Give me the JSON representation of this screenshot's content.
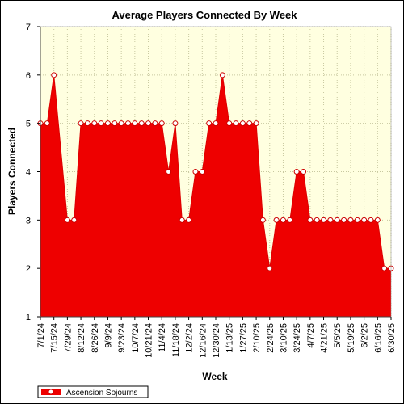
{
  "chart_data": {
    "type": "area",
    "title": "Average Players Connected By Week",
    "xlabel": "Week",
    "ylabel": "Players Connected",
    "ylim": [
      1,
      7
    ],
    "yticks": [
      1,
      2,
      3,
      4,
      5,
      6,
      7
    ],
    "grid": true,
    "legend_position": "bottom-left",
    "colors": {
      "series": "#ee0000",
      "plot_bg": "#ffffe0",
      "grid": "#c8c8a0",
      "marker_fill": "#ffffff"
    },
    "x_tick_labels": [
      "7/1/24",
      "7/15/24",
      "7/29/24",
      "8/12/24",
      "8/26/24",
      "9/9/24",
      "9/23/24",
      "10/7/24",
      "10/21/24",
      "11/4/24",
      "11/18/24",
      "12/2/24",
      "12/16/24",
      "12/30/24",
      "1/13/25",
      "1/27/25",
      "2/10/25",
      "2/24/25",
      "3/10/25",
      "3/24/25",
      "4/7/25",
      "4/21/25",
      "5/5/25",
      "5/19/25",
      "6/2/25",
      "6/16/25",
      "6/30/25"
    ],
    "series": [
      {
        "name": "Ascension Sojourns",
        "x": [
          "7/1/24",
          "7/8/24",
          "7/15/24",
          "7/22/24",
          "7/29/24",
          "8/5/24",
          "8/12/24",
          "8/19/24",
          "8/26/24",
          "9/2/24",
          "9/9/24",
          "9/16/24",
          "9/23/24",
          "9/30/24",
          "10/7/24",
          "10/14/24",
          "10/21/24",
          "10/28/24",
          "11/4/24",
          "11/11/24",
          "11/18/24",
          "11/25/24",
          "12/2/24",
          "12/9/24",
          "12/16/24",
          "12/23/24",
          "12/30/24",
          "1/6/25",
          "1/13/25",
          "1/20/25",
          "1/27/25",
          "2/3/25",
          "2/10/25",
          "2/17/25",
          "2/24/25",
          "3/3/25",
          "3/10/25",
          "3/17/25",
          "3/24/25",
          "3/31/25",
          "4/7/25",
          "4/14/25",
          "4/21/25",
          "4/28/25",
          "5/5/25",
          "5/12/25",
          "5/19/25",
          "5/26/25",
          "6/2/25",
          "6/9/25",
          "6/16/25",
          "6/23/25",
          "6/30/25"
        ],
        "values": [
          5,
          5,
          6,
          4.5,
          3,
          3,
          5,
          5,
          5,
          5,
          5,
          5,
          5,
          5,
          5,
          5,
          5,
          5,
          5,
          4,
          5,
          3,
          3,
          4,
          4,
          5,
          5,
          6,
          5,
          5,
          5,
          5,
          5,
          3,
          2,
          3,
          3,
          3,
          4,
          4,
          3,
          3,
          3,
          3,
          3,
          3,
          3,
          3,
          3,
          3,
          3,
          2,
          2
        ]
      }
    ]
  }
}
